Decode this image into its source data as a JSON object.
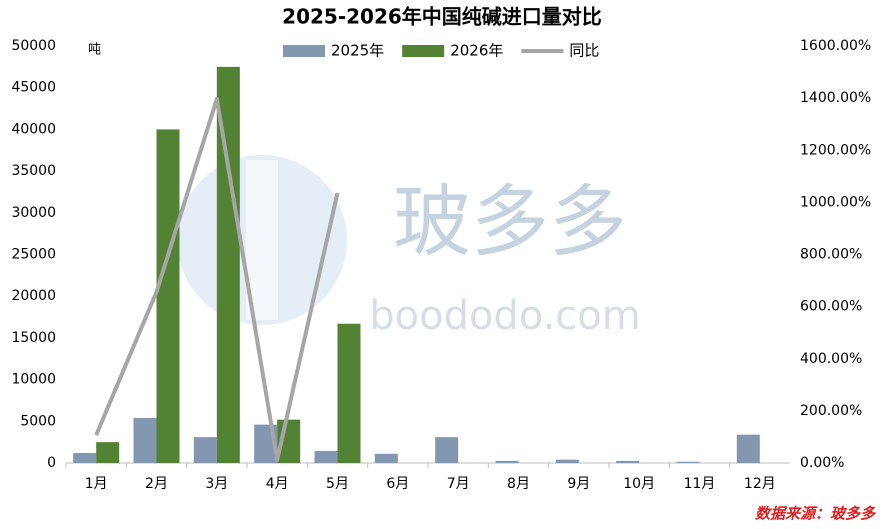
{
  "chart_data": {
    "type": "bar",
    "title": "2025-2026年中国纯碱进口量对比",
    "y_label": "吨",
    "categories": [
      "1月",
      "2月",
      "3月",
      "4月",
      "5月",
      "6月",
      "7月",
      "8月",
      "9月",
      "10月",
      "11月",
      "12月"
    ],
    "series": [
      {
        "name": "2025年",
        "color": "#8497b0",
        "values": [
          1200,
          5400,
          3100,
          4600,
          1450,
          1100,
          3100,
          250,
          400,
          250,
          150,
          3400
        ]
      },
      {
        "name": "2026年",
        "color": "#548235",
        "values": [
          2500,
          40000,
          47500,
          5200,
          16700,
          null,
          null,
          null,
          null,
          null,
          null,
          null
        ]
      },
      {
        "name": "同比",
        "color": "#a6a6a6",
        "type": "line",
        "axis": "y2",
        "values": [
          107,
          656,
          1397,
          12,
          1036,
          null,
          null,
          null,
          null,
          null,
          null,
          null
        ]
      }
    ],
    "ylim": [
      0,
      50000
    ],
    "yticks": [
      0,
      5000,
      10000,
      15000,
      20000,
      25000,
      30000,
      35000,
      40000,
      45000,
      50000
    ],
    "y2lim": [
      0,
      1600
    ],
    "y2ticks": [
      {
        "value": 0,
        "label": "0.00%"
      },
      {
        "value": 200,
        "label": "200.00%"
      },
      {
        "value": 400,
        "label": "400.00%"
      },
      {
        "value": 600,
        "label": "600.00%"
      },
      {
        "value": 800,
        "label": "800.00%"
      },
      {
        "value": 1000,
        "label": "1000.00%"
      },
      {
        "value": 1200,
        "label": "1200.00%"
      },
      {
        "value": 1400,
        "label": "1400.00%"
      },
      {
        "value": 1600,
        "label": "1600.00%"
      }
    ],
    "legend": "top",
    "source": "数据来源：玻多多",
    "watermark": {
      "name": "玻多多",
      "url": "boododo.com"
    }
  }
}
